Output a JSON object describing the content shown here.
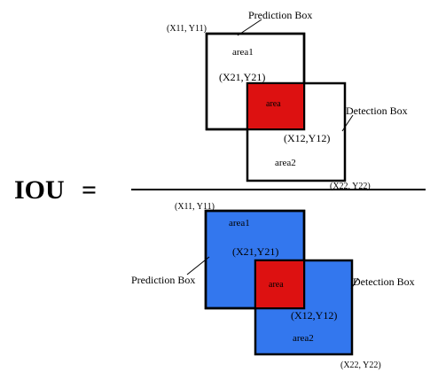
{
  "formula": {
    "lhs": "IOU",
    "equals": "="
  },
  "top": {
    "prediction_label": "Prediction Box",
    "detection_label": "Detection Box",
    "area1": "area1",
    "area2": "area2",
    "intersection": "area",
    "coord_x11y11": "(X11, Y11)",
    "coord_x21y21": "(X21,Y21)",
    "coord_x12y12": "(X12,Y12)",
    "coord_x22y22": "(X22, Y22)"
  },
  "bottom": {
    "prediction_label": "Prediction Box",
    "detection_label": "Detection Box",
    "area1": "area1",
    "area2": "area2",
    "intersection": "area",
    "coord_x11y11": "(X11, Y11)",
    "coord_x21y21": "(X21,Y21)",
    "coord_x12y12": "(X12,Y12)",
    "coord_x22y22": "(X22, Y22)"
  },
  "colors": {
    "intersection": "#dd1111",
    "union_fill": "#3377ee",
    "outline": "#000000"
  }
}
